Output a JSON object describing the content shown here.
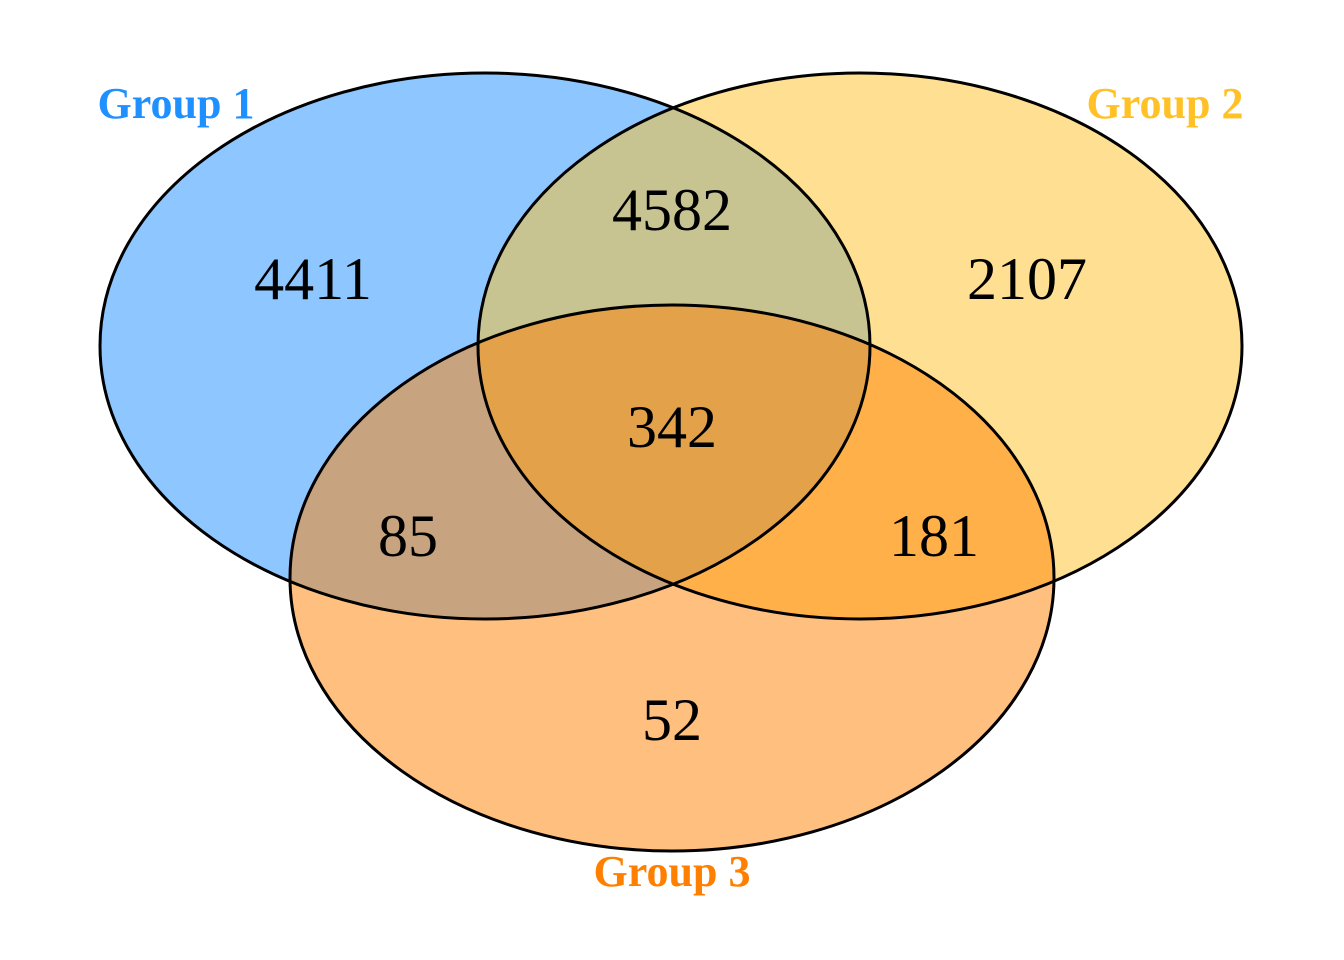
{
  "diagram": {
    "type": "venn-3",
    "sets": [
      {
        "id": "g1",
        "label": "Group 1",
        "label_color": "#1E90FF",
        "fill": "#1E90FF"
      },
      {
        "id": "g2",
        "label": "Group 2",
        "label_color": "#FFC125",
        "fill": "#FFC125"
      },
      {
        "id": "g3",
        "label": "Group 3",
        "label_color": "#FF7F00",
        "fill": "#FF7F00"
      }
    ],
    "fill_opacity": 0.5,
    "regions": {
      "g1_only": "4411",
      "g2_only": "2107",
      "g3_only": "52",
      "g1_g2": "4582",
      "g1_g3": "85",
      "g2_g3": "181",
      "g1_g2_g3": "342"
    }
  }
}
